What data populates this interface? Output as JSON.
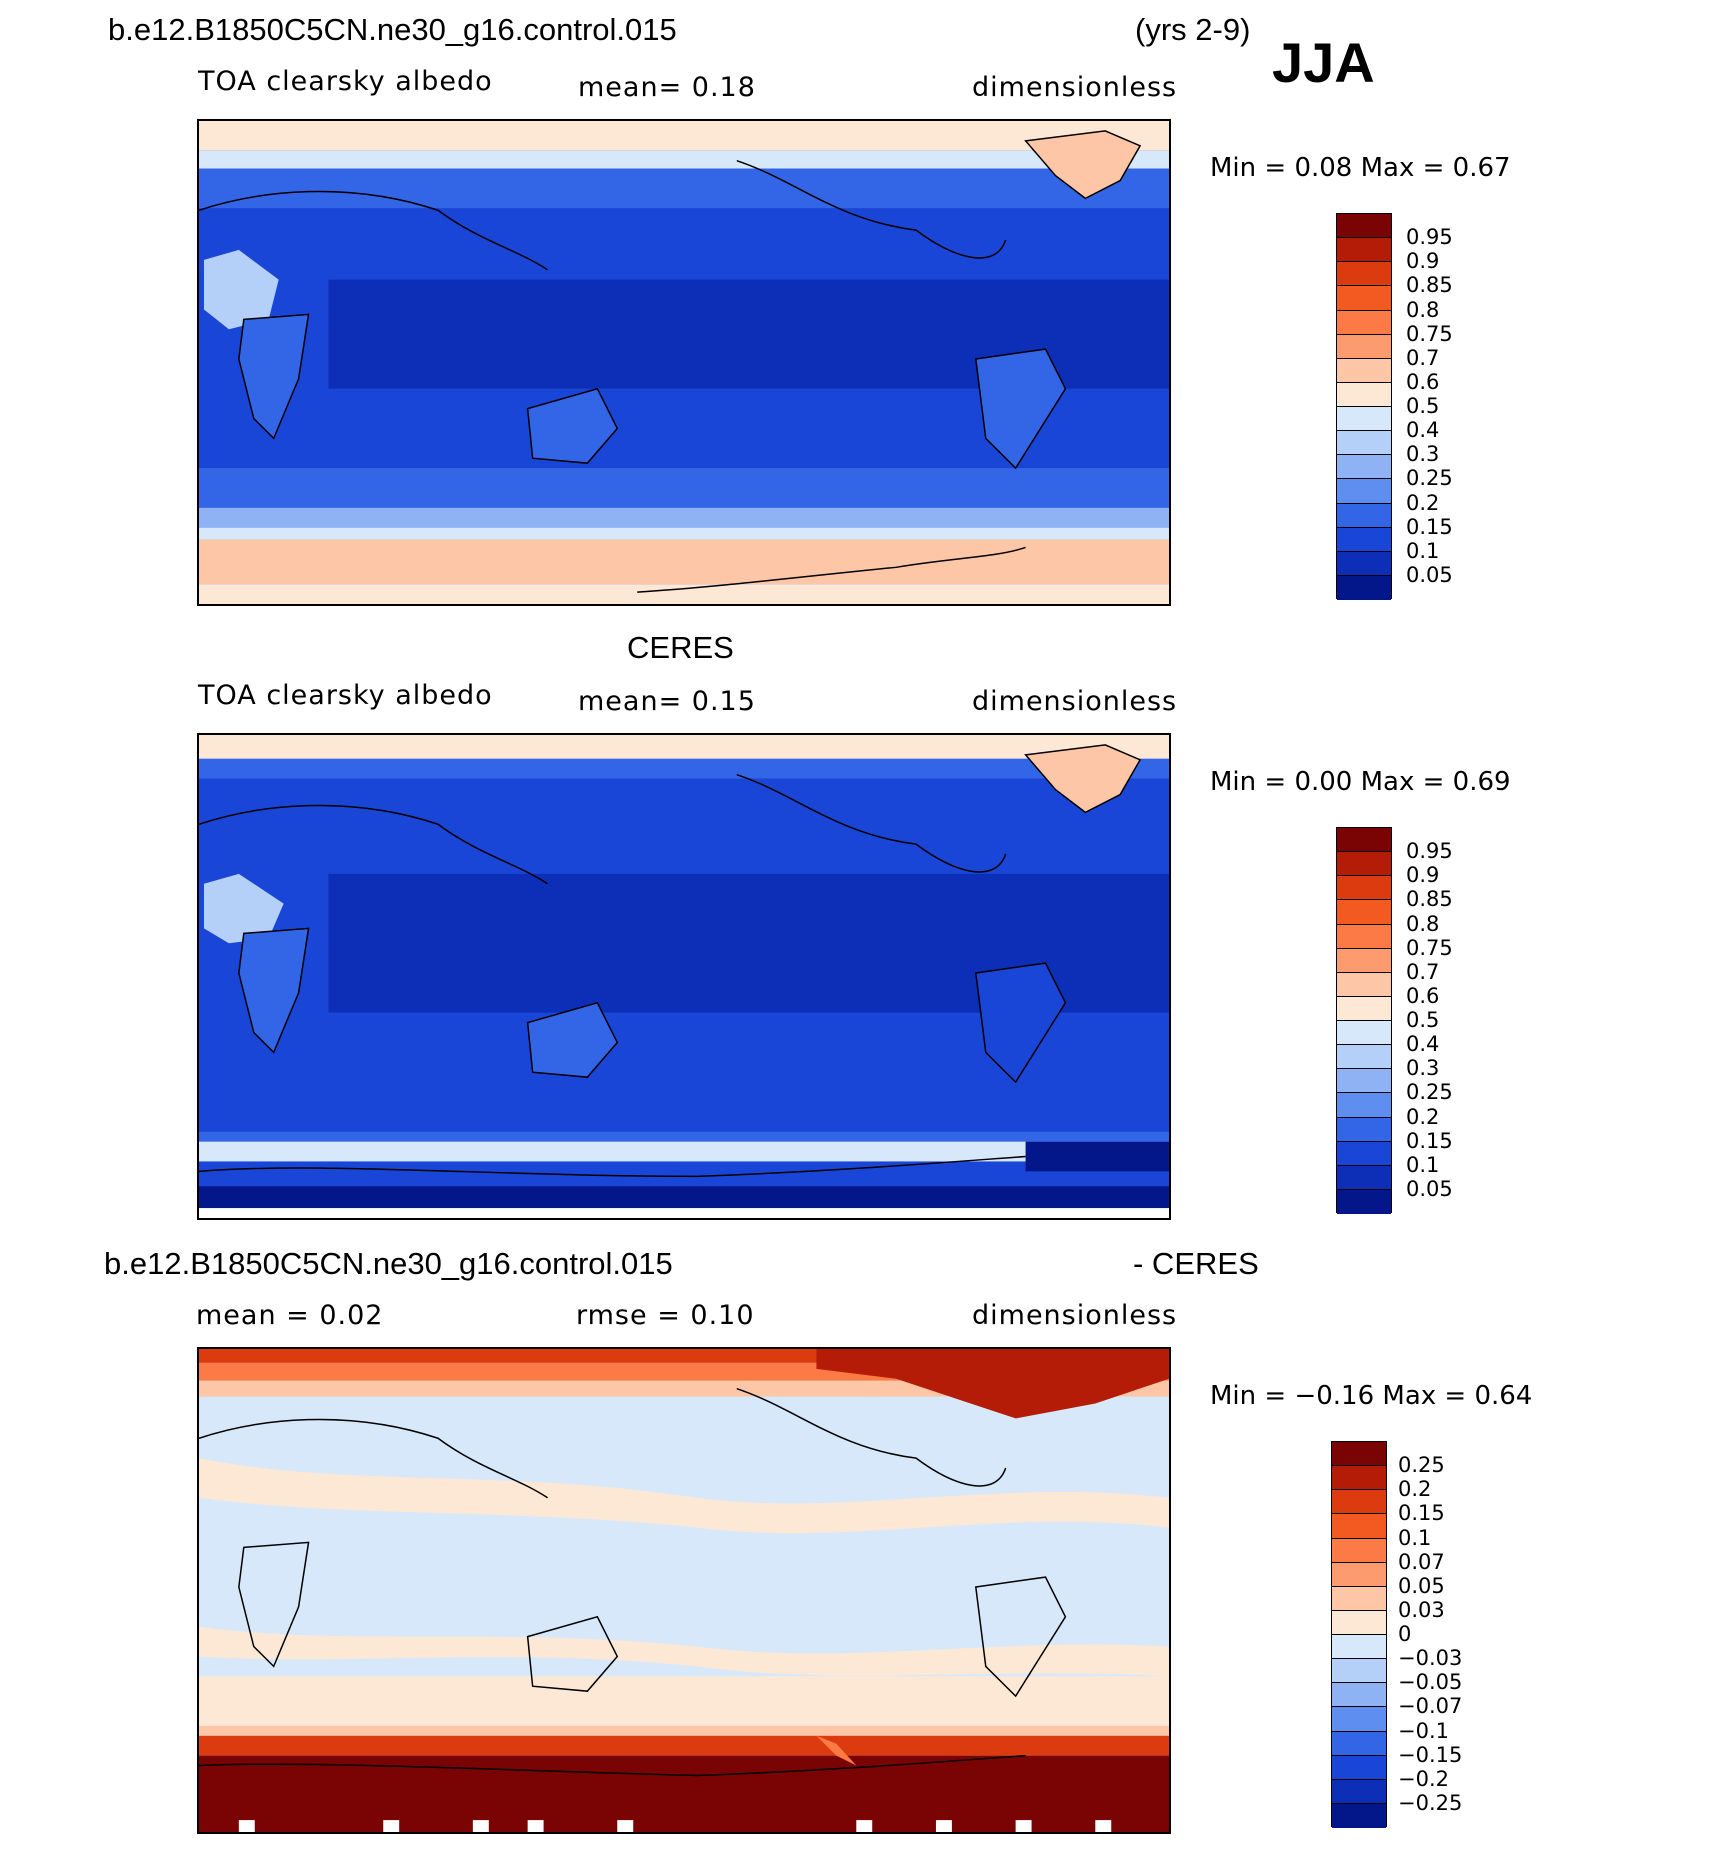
{
  "header": {
    "case": "b.e12.B1850C5CN.ne30_g16.control.015",
    "years": "(yrs 2-9)",
    "season": "JJA"
  },
  "panels": [
    {
      "title": "",
      "variable": "TOA clearsky albedo",
      "mean": "mean=    0.18",
      "units": "dimensionless",
      "minmax": "Min  =     0.08  Max  =     0.67",
      "type": "sequential"
    },
    {
      "title": "CERES",
      "variable": "TOA clearsky albedo",
      "mean": "mean=    0.15",
      "units": "dimensionless",
      "minmax": "Min  =     0.00  Max  =     0.69",
      "type": "sequential"
    },
    {
      "title": "b.e12.B1850C5CN.ne30_g16.control.015",
      "title_right": "- CERES",
      "mean": "mean  =     0.02",
      "rmse": "rmse  =     0.10",
      "units": "dimensionless",
      "minmax": "Min  =   −0.16  Max  =     0.64",
      "type": "difference"
    }
  ],
  "colorbar_seq": {
    "labels": [
      "0.95",
      "0.9",
      "0.85",
      "0.8",
      "0.75",
      "0.7",
      "0.6",
      "0.5",
      "0.4",
      "0.3",
      "0.25",
      "0.2",
      "0.15",
      "0.1",
      "0.05"
    ],
    "colors": [
      "#7a0403",
      "#b51c07",
      "#dc3a0f",
      "#f25a22",
      "#fb7a45",
      "#fc9c6e",
      "#fdc6a6",
      "#fde8d6",
      "#d6e8fa",
      "#b5d0f8",
      "#8fb2f5",
      "#5e8ff0",
      "#3366e6",
      "#1a46d8",
      "#0d2fb8",
      "#03168a"
    ]
  },
  "colorbar_diff": {
    "labels": [
      "0.25",
      "0.2",
      "0.15",
      "0.1",
      "0.07",
      "0.05",
      "0.03",
      "0",
      "−0.03",
      "−0.05",
      "−0.07",
      "−0.1",
      "−0.15",
      "−0.2",
      "−0.25"
    ],
    "colors": [
      "#7a0403",
      "#b51c07",
      "#dc3a0f",
      "#f25a22",
      "#fb7a45",
      "#fc9c6e",
      "#fdc6a6",
      "#fde8d6",
      "#d6e8fa",
      "#b5d0f8",
      "#8fb2f5",
      "#5e8ff0",
      "#3366e6",
      "#1a46d8",
      "#0d2fb8",
      "#03168a"
    ]
  }
}
